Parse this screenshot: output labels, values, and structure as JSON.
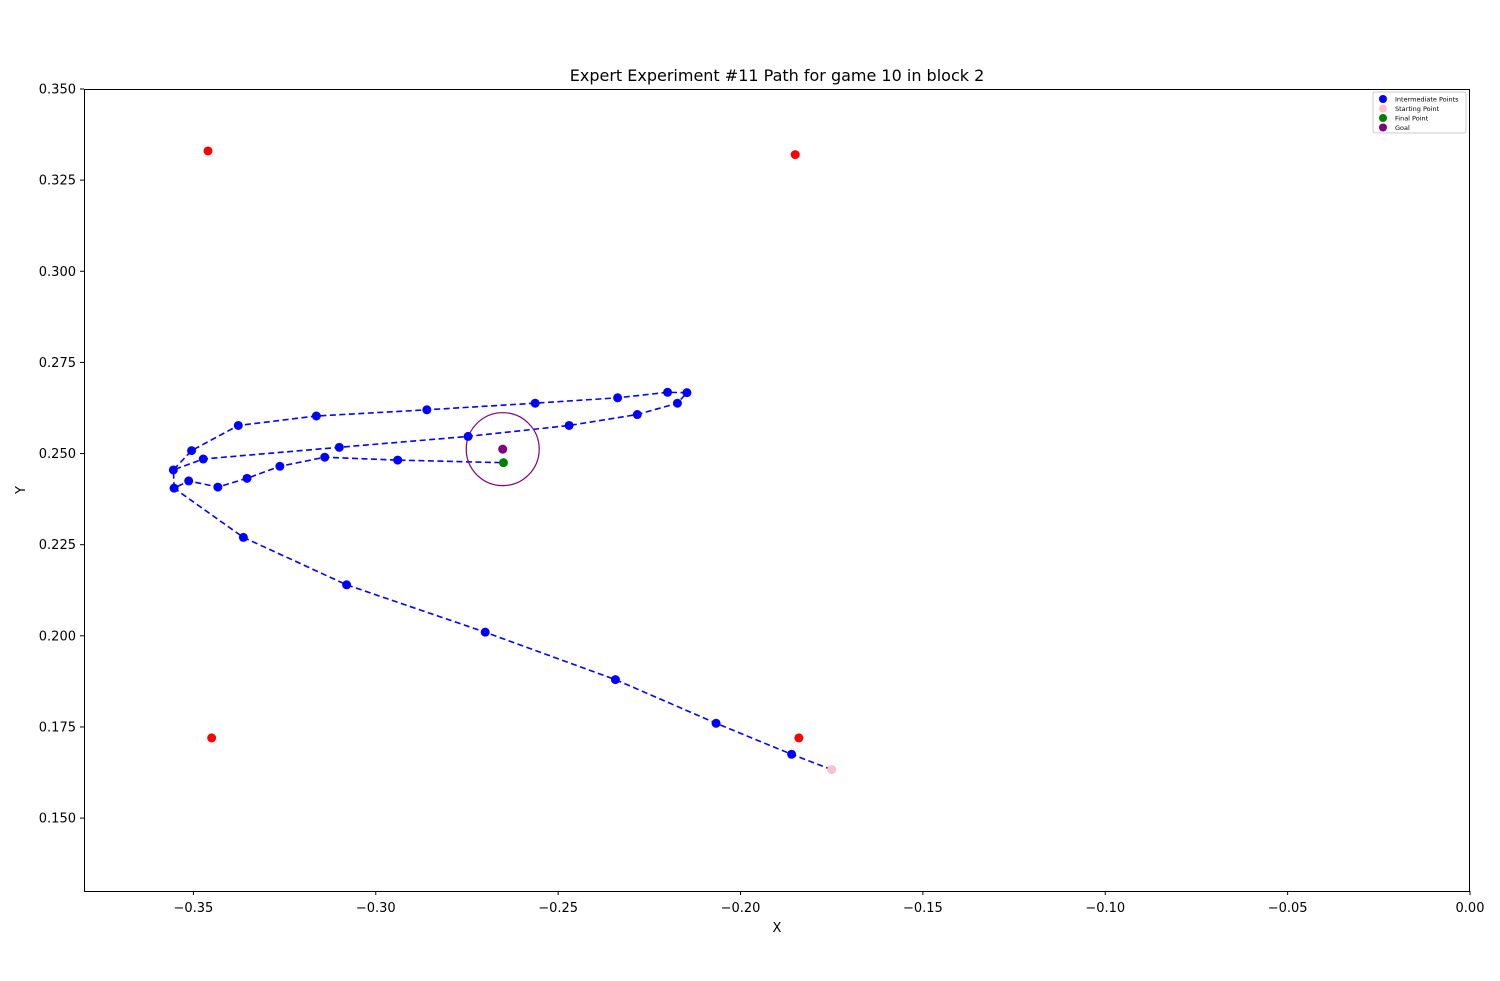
{
  "chart_data": {
    "type": "scatter",
    "title": "Expert Experiment #11 Path for game 10 in block 2",
    "xlabel": "X",
    "ylabel": "Y",
    "xlim": [
      -0.38,
      0.0
    ],
    "ylim": [
      0.13,
      0.35
    ],
    "xticks": [
      -0.35,
      -0.3,
      -0.25,
      -0.2,
      -0.15,
      -0.1,
      -0.05,
      0.0
    ],
    "xtick_labels": [
      "−0.35",
      "−0.30",
      "−0.25",
      "−0.20",
      "−0.15",
      "−0.10",
      "−0.05",
      "0.00"
    ],
    "yticks": [
      0.15,
      0.175,
      0.2,
      0.225,
      0.25,
      0.275,
      0.3,
      0.325,
      0.35
    ],
    "ytick_labels": [
      "0.150",
      "0.175",
      "0.200",
      "0.225",
      "0.250",
      "0.275",
      "0.300",
      "0.325",
      "0.350"
    ],
    "grid": false,
    "legend_position": "top-right",
    "legend": [
      {
        "label": "Intermediate Points",
        "color": "#0000ff"
      },
      {
        "label": "Starting Point",
        "color": "#ffc0cb"
      },
      {
        "label": "Final Point",
        "color": "#008000"
      },
      {
        "label": "Goal",
        "color": "#800080"
      }
    ],
    "path": {
      "color": "#0000ff",
      "style": "dashed",
      "points": [
        [
          -0.175,
          0.1633
        ],
        [
          -0.186,
          0.1675
        ],
        [
          -0.2067,
          0.176
        ],
        [
          -0.2343,
          0.188
        ],
        [
          -0.27,
          0.201
        ],
        [
          -0.308,
          0.214
        ],
        [
          -0.3363,
          0.227
        ],
        [
          -0.3553,
          0.2405
        ],
        [
          -0.3513,
          0.2425
        ],
        [
          -0.3433,
          0.2408
        ],
        [
          -0.3353,
          0.2432
        ],
        [
          -0.3263,
          0.2465
        ],
        [
          -0.314,
          0.249
        ],
        [
          -0.294,
          0.2482
        ],
        [
          -0.265,
          0.2475
        ]
      ]
    },
    "intermediate_points": [
      [
        -0.186,
        0.1675
      ],
      [
        -0.2067,
        0.176
      ],
      [
        -0.2343,
        0.188
      ],
      [
        -0.27,
        0.201
      ],
      [
        -0.308,
        0.214
      ],
      [
        -0.3363,
        0.227
      ],
      [
        -0.3553,
        0.2405
      ],
      [
        -0.3513,
        0.2425
      ],
      [
        -0.3433,
        0.2408
      ],
      [
        -0.3353,
        0.2432
      ],
      [
        -0.3263,
        0.2465
      ],
      [
        -0.314,
        0.249
      ],
      [
        -0.294,
        0.2482
      ],
      [
        -0.3555,
        0.2455
      ],
      [
        -0.3505,
        0.2508
      ],
      [
        -0.3377,
        0.2577
      ],
      [
        -0.3163,
        0.2603
      ],
      [
        -0.286,
        0.262
      ],
      [
        -0.2563,
        0.2638
      ],
      [
        -0.2337,
        0.2653
      ],
      [
        -0.22,
        0.2668
      ],
      [
        -0.2147,
        0.2667
      ],
      [
        -0.2173,
        0.2638
      ],
      [
        -0.2283,
        0.2607
      ],
      [
        -0.247,
        0.2577
      ],
      [
        -0.2747,
        0.2547
      ],
      [
        -0.31,
        0.2517
      ],
      [
        -0.3473,
        0.2485
      ]
    ],
    "loop_segments": [
      [
        [
          -0.3553,
          0.2405
        ],
        [
          -0.3555,
          0.2455
        ],
        [
          -0.3505,
          0.2508
        ],
        [
          -0.3377,
          0.2577
        ],
        [
          -0.3163,
          0.2603
        ],
        [
          -0.286,
          0.262
        ],
        [
          -0.2563,
          0.2638
        ],
        [
          -0.2337,
          0.2653
        ],
        [
          -0.22,
          0.2668
        ],
        [
          -0.2147,
          0.2667
        ],
        [
          -0.2173,
          0.2638
        ],
        [
          -0.2283,
          0.2607
        ],
        [
          -0.247,
          0.2577
        ],
        [
          -0.2747,
          0.2547
        ],
        [
          -0.31,
          0.2517
        ],
        [
          -0.3473,
          0.2485
        ],
        [
          -0.3555,
          0.2455
        ]
      ]
    ],
    "starting_point": [
      -0.175,
      0.1633
    ],
    "final_point": [
      -0.265,
      0.2475
    ],
    "goal": {
      "x": -0.2652,
      "y": 0.2512,
      "radius": 0.01,
      "color": "#800080"
    },
    "obstacles": {
      "color": "#ff0000",
      "points": [
        [
          -0.346,
          0.333
        ],
        [
          -0.185,
          0.332
        ],
        [
          -0.345,
          0.172
        ],
        [
          -0.184,
          0.172
        ]
      ]
    }
  }
}
